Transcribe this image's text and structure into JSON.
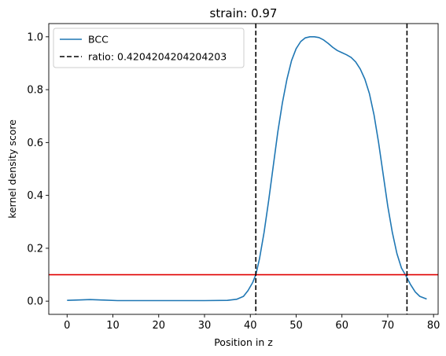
{
  "chart_data": {
    "type": "line",
    "title": "strain: 0.97",
    "xlabel": "Position in z",
    "ylabel": "kernel density score",
    "xlim": [
      -4,
      81
    ],
    "ylim": [
      -0.05,
      1.05
    ],
    "xticks": [
      0,
      10,
      20,
      30,
      40,
      50,
      60,
      70,
      80
    ],
    "yticks": [
      0.0,
      0.2,
      0.4,
      0.6,
      0.8,
      1.0
    ],
    "grid": false,
    "legend_position": "top-left",
    "series": [
      {
        "name": "BCC",
        "color": "#1f77b4",
        "style": "solid",
        "x": [
          0,
          2,
          5,
          8,
          11,
          15,
          20,
          25,
          30,
          35,
          37,
          38.5,
          39.5,
          40.5,
          41.2,
          42,
          43,
          44,
          45,
          46,
          47,
          48,
          49,
          50,
          51,
          52,
          53,
          54,
          55,
          56,
          57,
          58,
          59,
          60,
          61,
          62,
          63,
          64,
          65,
          66,
          67,
          68,
          69,
          70,
          71,
          72,
          73,
          74,
          75,
          76,
          77,
          78.5
        ],
        "y": [
          0.003,
          0.004,
          0.006,
          0.004,
          0.002,
          0.002,
          0.002,
          0.002,
          0.002,
          0.003,
          0.007,
          0.018,
          0.04,
          0.07,
          0.1,
          0.16,
          0.26,
          0.38,
          0.51,
          0.64,
          0.75,
          0.84,
          0.91,
          0.955,
          0.982,
          0.996,
          1.0,
          1.0,
          0.997,
          0.988,
          0.975,
          0.96,
          0.948,
          0.94,
          0.932,
          0.922,
          0.905,
          0.878,
          0.84,
          0.785,
          0.705,
          0.6,
          0.48,
          0.36,
          0.26,
          0.18,
          0.125,
          0.095,
          0.062,
          0.035,
          0.018,
          0.008
        ]
      }
    ],
    "vlines": [
      {
        "name": "ratio: 0.4204204204204203",
        "x": 41.2,
        "color": "#000000",
        "style": "dashed"
      },
      {
        "x": 74.2,
        "color": "#000000",
        "style": "dashed"
      }
    ],
    "hlines": [
      {
        "y": 0.1,
        "color": "#e00000",
        "style": "solid"
      }
    ]
  }
}
